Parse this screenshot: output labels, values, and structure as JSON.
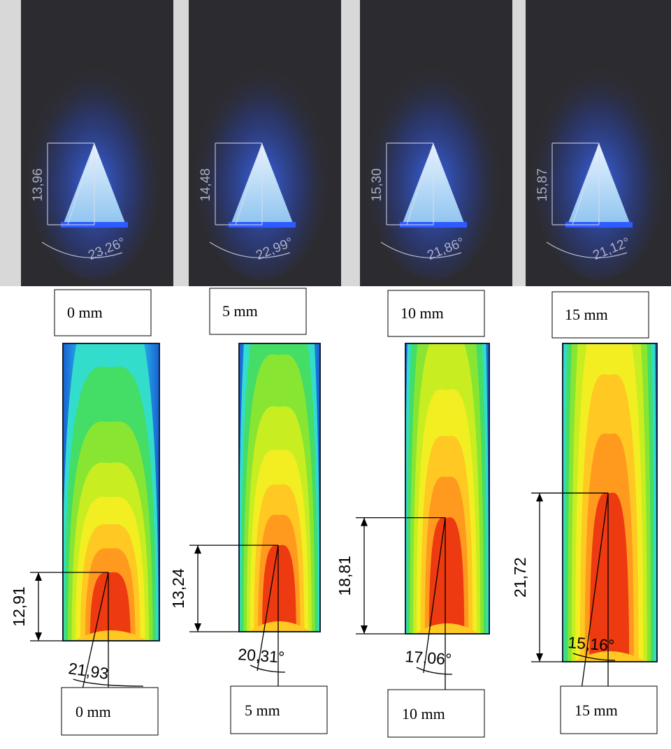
{
  "panels": [
    {
      "photo": {
        "height_label": "13,96",
        "angle_label": "23,26°"
      },
      "photo_caption": "0 mm",
      "cfd": {
        "height_label": "12,91",
        "angle_label": "21,93"
      },
      "cfd_caption": "0 mm"
    },
    {
      "photo": {
        "height_label": "14,48",
        "angle_label": "22,99°"
      },
      "photo_caption": "5 mm",
      "cfd": {
        "height_label": "13,24",
        "angle_label": "20,31°"
      },
      "cfd_caption": "5 mm"
    },
    {
      "photo": {
        "height_label": "15,30",
        "angle_label": "21,86°"
      },
      "photo_caption": "10 mm",
      "cfd": {
        "height_label": "18,81",
        "angle_label": "17,06°"
      },
      "cfd_caption": "10 mm"
    },
    {
      "photo": {
        "height_label": "15,87",
        "angle_label": "21,12°"
      },
      "photo_caption": "15 mm",
      "cfd": {
        "height_label": "21,72",
        "angle_label": "15,16°"
      },
      "cfd_caption": "15 mm"
    }
  ]
}
